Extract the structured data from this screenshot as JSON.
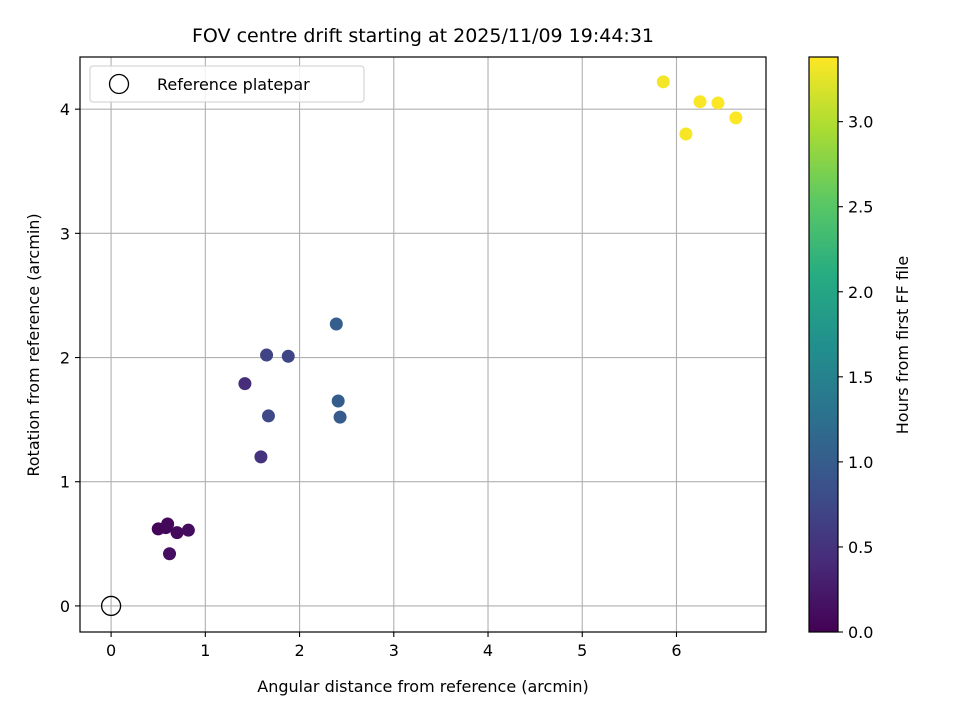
{
  "chart_data": {
    "type": "scatter",
    "title": "FOV centre drift starting at 2025/11/09 19:44:31",
    "xlabel": "Angular distance from reference (arcmin)",
    "ylabel": "Rotation from reference (arcmin)",
    "xlim": [
      -0.33,
      6.95
    ],
    "ylim": [
      -0.21,
      4.42
    ],
    "xticks": [
      0,
      1,
      2,
      3,
      4,
      5,
      6
    ],
    "yticks": [
      0,
      1,
      2,
      3,
      4
    ],
    "grid": true,
    "legend": {
      "position": "top-left",
      "entries": [
        "Reference platepar"
      ]
    },
    "reference_point": {
      "label": "Reference platepar",
      "x": 0,
      "y": 0
    },
    "colorbar": {
      "label": "Hours from first FF file",
      "colormap": "viridis",
      "range": [
        0.0,
        3.38
      ],
      "ticks": [
        0.0,
        0.5,
        1.0,
        1.5,
        2.0,
        2.5,
        3.0
      ]
    },
    "points": [
      {
        "x": 0.5,
        "y": 0.62,
        "c": 0.03
      },
      {
        "x": 0.58,
        "y": 0.63,
        "c": 0.05
      },
      {
        "x": 0.6,
        "y": 0.66,
        "c": 0.07
      },
      {
        "x": 0.7,
        "y": 0.59,
        "c": 0.09
      },
      {
        "x": 0.82,
        "y": 0.61,
        "c": 0.11
      },
      {
        "x": 0.62,
        "y": 0.42,
        "c": 0.13
      },
      {
        "x": 1.42,
        "y": 1.79,
        "c": 0.45
      },
      {
        "x": 1.59,
        "y": 1.2,
        "c": 0.5
      },
      {
        "x": 1.65,
        "y": 2.02,
        "c": 0.7
      },
      {
        "x": 1.67,
        "y": 1.53,
        "c": 0.75
      },
      {
        "x": 1.88,
        "y": 2.01,
        "c": 0.72
      },
      {
        "x": 2.39,
        "y": 2.27,
        "c": 1.02
      },
      {
        "x": 2.41,
        "y": 1.65,
        "c": 1.0
      },
      {
        "x": 2.43,
        "y": 1.52,
        "c": 0.98
      },
      {
        "x": 5.86,
        "y": 4.22,
        "c": 3.33
      },
      {
        "x": 6.1,
        "y": 3.8,
        "c": 3.35
      },
      {
        "x": 6.25,
        "y": 4.06,
        "c": 3.36
      },
      {
        "x": 6.44,
        "y": 4.05,
        "c": 3.37
      },
      {
        "x": 6.63,
        "y": 3.93,
        "c": 3.38
      }
    ]
  }
}
